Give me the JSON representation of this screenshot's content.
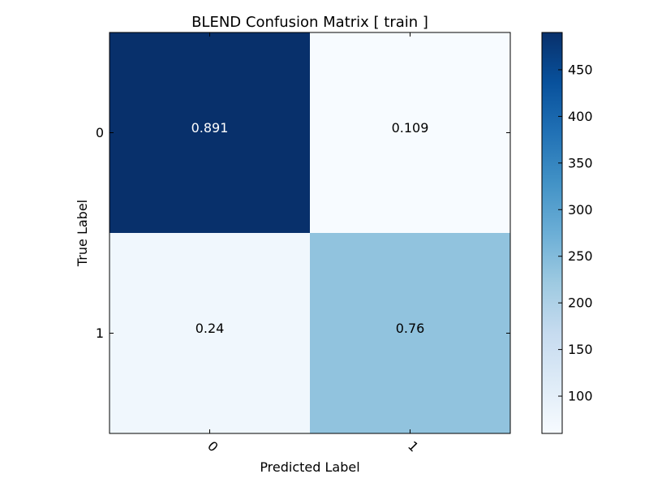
{
  "chart_data": {
    "type": "heatmap",
    "title": "BLEND Confusion Matrix [ train ]",
    "xlabel": "Predicted Label",
    "ylabel": "True Label",
    "x_categories": [
      "0",
      "1"
    ],
    "y_categories": [
      "0",
      "1"
    ],
    "values": [
      [
        0.891,
        0.109
      ],
      [
        0.24,
        0.76
      ]
    ],
    "cell_labels": [
      [
        "0.891",
        "0.109"
      ],
      [
        "0.24",
        "0.76"
      ]
    ],
    "counts": [
      [
        490,
        60
      ],
      [
        75,
        235
      ]
    ],
    "colorbar": {
      "range": [
        60,
        490
      ],
      "ticks": [
        100,
        150,
        200,
        250,
        300,
        350,
        400,
        450
      ],
      "colormap": "Blues"
    },
    "text_colors": {
      "dark_bg": "#ffffff",
      "light_bg": "#000000"
    }
  }
}
